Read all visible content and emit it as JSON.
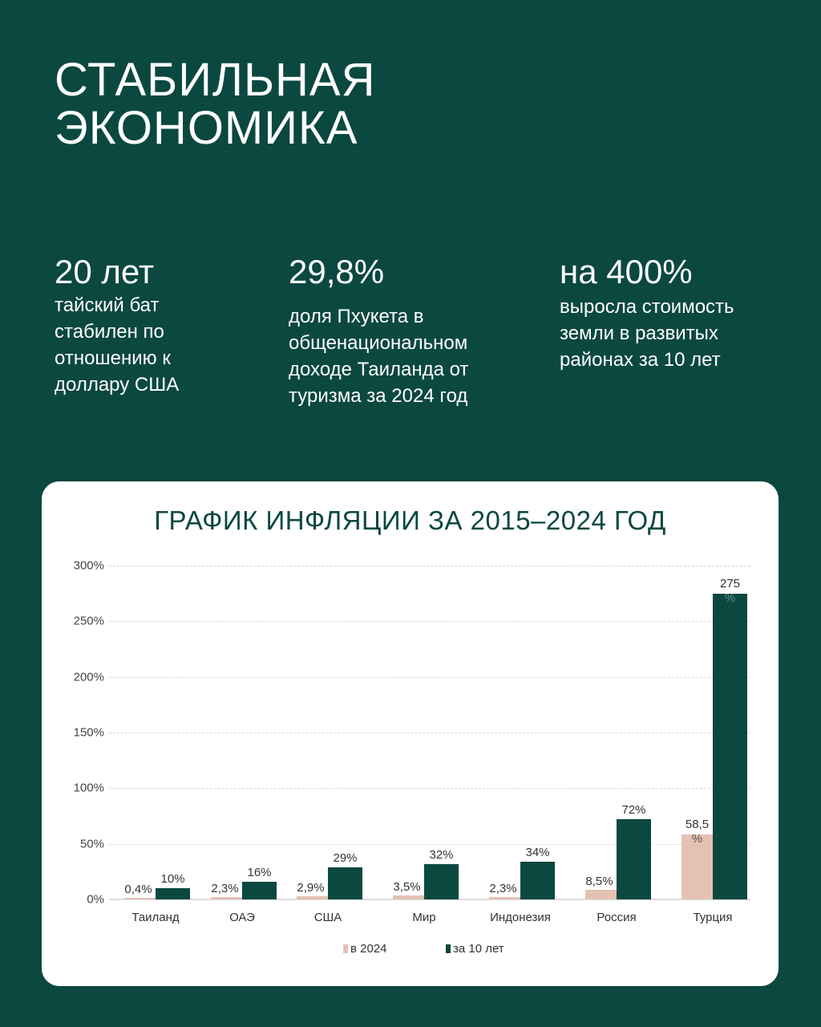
{
  "header": {
    "title_line1": "СТАБИЛЬНАЯ",
    "title_line2": "ЭКОНОМИКА"
  },
  "stats": [
    {
      "value": "20 лет",
      "description": "тайский бат\nстабилен по\nотношению к\nдоллару США"
    },
    {
      "value": "29,8%",
      "description": "доля Пхукета в\nобщенациональном\nдоходе Таиланда от\nтуризма за 2024 год"
    },
    {
      "value": "на 400%",
      "description": "выросла стоимость\nземли в развитых\nрайонах за 10 лет"
    }
  ],
  "colors": {
    "background": "#0b4840",
    "series_2024": "#e4c2b3",
    "series_10y": "#0b4840"
  },
  "chart_data": {
    "type": "bar",
    "title": "ГРАФИК ИНФЛЯЦИИ ЗА 2015–2024 ГОД",
    "xlabel": "",
    "ylabel": "",
    "ylim": [
      0,
      300
    ],
    "yticks": [
      "0%",
      "50%",
      "100%",
      "150%",
      "200%",
      "250%",
      "300%"
    ],
    "grid": true,
    "legend_position": "bottom",
    "categories": [
      "Таиланд",
      "ОАЭ",
      "США",
      "Мир",
      "Индонезия",
      "Россия",
      "Турция"
    ],
    "series": [
      {
        "name": "в 2024",
        "values": [
          0.4,
          2.3,
          2.9,
          3.5,
          2.3,
          8.5,
          58.5
        ],
        "labels": [
          "0,4%",
          "2,3%",
          "2,9%",
          "3,5%",
          "2,3%",
          "8,5%",
          "58,5\n%"
        ]
      },
      {
        "name": "за 10 лет",
        "values": [
          10,
          16,
          29,
          32,
          34,
          72,
          275
        ],
        "labels": [
          "10%",
          "16%",
          "29%",
          "32%",
          "34%",
          "72%",
          "275\n%"
        ]
      }
    ]
  }
}
